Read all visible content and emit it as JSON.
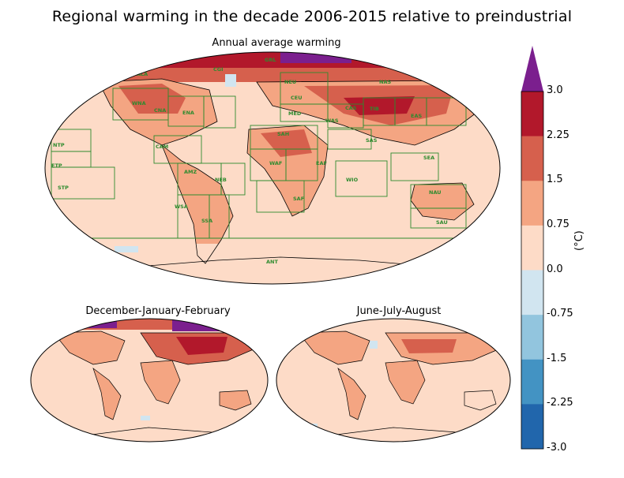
{
  "figure": {
    "title": "Regional warming in the decade 2006-2015 relative to preindustrial"
  },
  "panels": [
    {
      "id": "annual",
      "title": "Annual average warming"
    },
    {
      "id": "djf",
      "title": "December-January-February"
    },
    {
      "id": "jja",
      "title": "June-July-August"
    }
  ],
  "colorbar": {
    "unit": "(°C)",
    "ticks": [
      "3.0",
      "2.25",
      "1.5",
      "0.75",
      "0.0",
      "-0.75",
      "-1.5",
      "-2.25",
      "-3.0"
    ],
    "bins": [
      {
        "from": 2.25,
        "to": 3.0,
        "color": "#b2182b"
      },
      {
        "from": 1.5,
        "to": 2.25,
        "color": "#d6604d"
      },
      {
        "from": 0.75,
        "to": 1.5,
        "color": "#f4a582"
      },
      {
        "from": 0.0,
        "to": 0.75,
        "color": "#fddbc7"
      },
      {
        "from": -0.75,
        "to": 0.0,
        "color": "#d1e5f0"
      },
      {
        "from": -1.5,
        "to": -0.75,
        "color": "#92c5de"
      },
      {
        "from": -2.25,
        "to": -1.5,
        "color": "#4393c3"
      },
      {
        "from": -3.0,
        "to": -2.25,
        "color": "#2166ac"
      }
    ],
    "extend_max_color": "#7b1f8e"
  },
  "regions": [
    {
      "code": "GRL"
    },
    {
      "code": "NAS"
    },
    {
      "code": "ALA"
    },
    {
      "code": "CGI"
    },
    {
      "code": "NEU"
    },
    {
      "code": "WNA"
    },
    {
      "code": "CNA"
    },
    {
      "code": "ENA"
    },
    {
      "code": "CEU"
    },
    {
      "code": "MED"
    },
    {
      "code": "WAS"
    },
    {
      "code": "CAS"
    },
    {
      "code": "TIB"
    },
    {
      "code": "EAS"
    },
    {
      "code": "NTP"
    },
    {
      "code": "ETP"
    },
    {
      "code": "STP"
    },
    {
      "code": "CAM"
    },
    {
      "code": "SAH"
    },
    {
      "code": "SAS"
    },
    {
      "code": "WAF"
    },
    {
      "code": "EAF"
    },
    {
      "code": "SEA"
    },
    {
      "code": "AMZ"
    },
    {
      "code": "NEB"
    },
    {
      "code": "WIO"
    },
    {
      "code": "SAF"
    },
    {
      "code": "NAU"
    },
    {
      "code": "WSA"
    },
    {
      "code": "SSA"
    },
    {
      "code": "SAU"
    },
    {
      "code": "ANT"
    }
  ],
  "chart_data": {
    "type": "heatmap",
    "title": "Regional warming in the decade 2006-2015 relative to preindustrial",
    "colorbar_range": [
      -3.0,
      3.0
    ],
    "colorbar_unit": "(°C)",
    "panels": [
      {
        "title": "Annual average warming",
        "dominant_range": [
          0.0,
          1.5
        ],
        "max_category": ">3.0 (Arctic)"
      },
      {
        "title": "December-January-February",
        "dominant_range": [
          0.0,
          2.25
        ],
        "max_category": ">3.0 (Arctic, northern Eurasia)"
      },
      {
        "title": "June-July-August",
        "dominant_range": [
          0.0,
          1.5
        ],
        "max_category": "1.5-2.25"
      }
    ]
  }
}
